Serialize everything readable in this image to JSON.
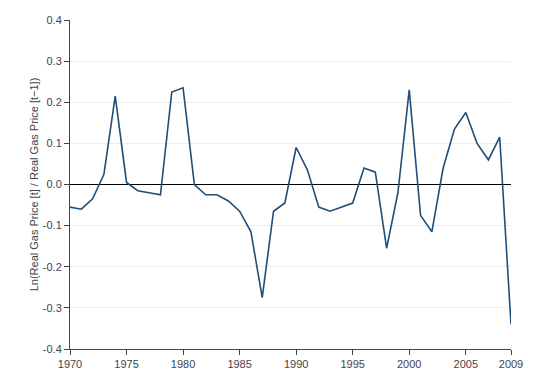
{
  "chart_data": {
    "type": "line",
    "ylabel": "Ln(Real Gas Price [t] / Real Gas Price [t−1])",
    "x": [
      1970,
      1971,
      1972,
      1973,
      1974,
      1975,
      1976,
      1977,
      1978,
      1979,
      1980,
      1981,
      1982,
      1983,
      1984,
      1985,
      1986,
      1987,
      1988,
      1989,
      1990,
      1991,
      1992,
      1993,
      1994,
      1995,
      1996,
      1997,
      1998,
      1999,
      2000,
      2001,
      2002,
      2003,
      2004,
      2005,
      2006,
      2007,
      2008,
      2009
    ],
    "values": [
      -0.055,
      -0.06,
      -0.035,
      0.025,
      0.215,
      0.005,
      -0.015,
      -0.02,
      -0.025,
      0.225,
      0.235,
      0.0,
      -0.025,
      -0.025,
      -0.04,
      -0.065,
      -0.115,
      -0.275,
      -0.065,
      -0.045,
      0.09,
      0.035,
      -0.055,
      -0.065,
      -0.055,
      -0.045,
      0.04,
      0.03,
      -0.155,
      -0.02,
      0.23,
      -0.075,
      -0.115,
      0.04,
      0.135,
      0.175,
      0.1,
      0.06,
      0.115,
      -0.34
    ],
    "color": "#1f4e79",
    "xlim": [
      1970,
      2009
    ],
    "ylim": [
      -0.4,
      0.4
    ],
    "xticks": [
      1970,
      1975,
      1980,
      1985,
      1990,
      1995,
      2000,
      2005,
      2009
    ],
    "yticks": [
      -0.4,
      -0.3,
      -0.2,
      -0.1,
      {
        "value": 0,
        "label": "0.0"
      },
      0.1,
      0.2,
      0.3,
      0.4
    ],
    "grid": true
  }
}
